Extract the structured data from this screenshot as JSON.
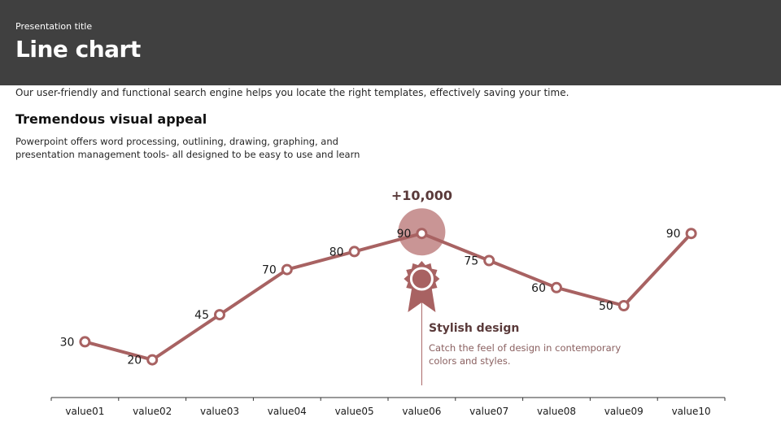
{
  "header": {
    "presentation_title": "Presentation title",
    "title": "Line chart"
  },
  "intro_text": "Our user-friendly and functional search engine helps you locate the right templates, effectively saving your time.",
  "subheading": "Tremendous visual appeal",
  "body_text": "Powerpoint offers word processing, outlining, drawing, graphing, and presentation management tools- all designed to be easy to use and learn",
  "callout": {
    "value": "+10,000",
    "title": "Stylish design",
    "text": "Catch the feel of design in contemporary colors and styles."
  },
  "colors": {
    "header_bg": "#404040",
    "line": "#a86262",
    "highlight": "#c99595",
    "axis": "#333333"
  },
  "chart_data": {
    "type": "line",
    "categories": [
      "value01",
      "value02",
      "value03",
      "value04",
      "value05",
      "value06",
      "value07",
      "value08",
      "value09",
      "value10"
    ],
    "series": [
      {
        "values": [
          30,
          20,
          45,
          70,
          80,
          90,
          75,
          60,
          50,
          90
        ]
      }
    ],
    "data_labels": true,
    "highlight_index": 5,
    "grid": false,
    "legend": "none"
  }
}
